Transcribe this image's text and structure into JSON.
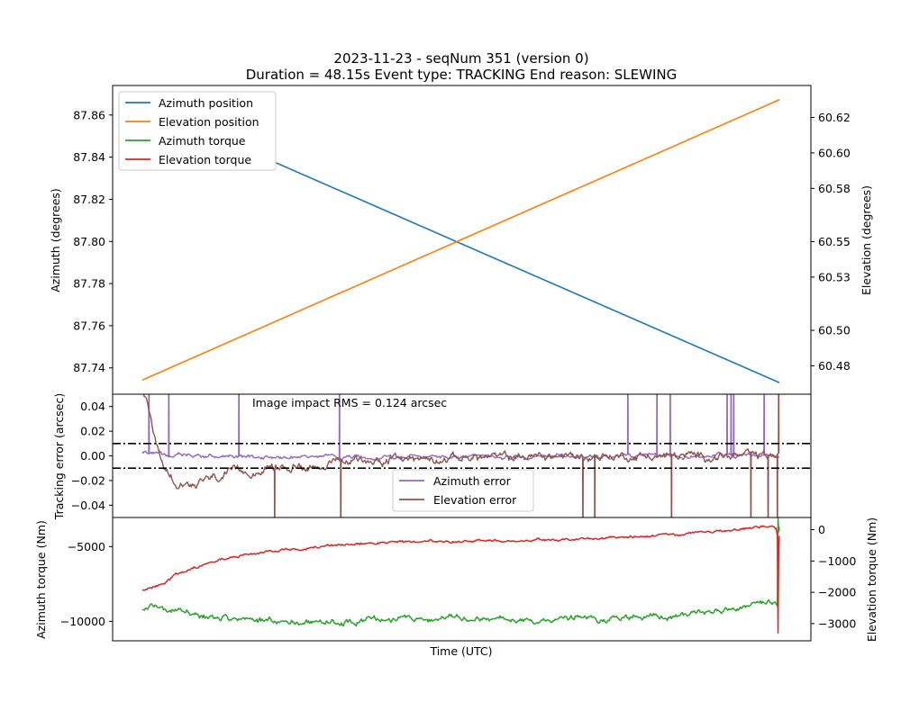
{
  "chart_data": [
    {
      "type": "line",
      "title": "2023-11-23 - seqNum 351 (version 0)",
      "subtitle": "Duration = 48.15s Event type: TRACKING End reason: SLEWING",
      "xlabel": "",
      "ylabel": "Azimuth (degrees)",
      "ylabel_right": "Elevation (degrees)",
      "ylim": [
        87.7275,
        87.874
      ],
      "ylim_right": [
        60.464,
        60.638
      ],
      "yticks": [
        "87.74",
        "87.76",
        "87.78",
        "87.80",
        "87.82",
        "87.84",
        "87.86"
      ],
      "yticks_right": [
        "60.48",
        "60.50",
        "60.53",
        "60.55",
        "60.58",
        "60.60",
        "60.62"
      ],
      "x_range": [
        0,
        48.15
      ],
      "grid": false,
      "legend": "top-left",
      "series": [
        {
          "name": "Azimuth position",
          "axis": "left",
          "color": "#1f77b4",
          "x": [
            0,
            48.15
          ],
          "values": [
            87.865,
            87.733
          ]
        },
        {
          "name": "Elevation position",
          "axis": "right",
          "color": "#ff7f0e",
          "x": [
            0,
            48.15
          ],
          "values": [
            60.472,
            60.63
          ]
        },
        {
          "name": "Azimuth torque",
          "color": "#2ca02c",
          "legend_only": true
        },
        {
          "name": "Elevation torque",
          "color": "#d62728",
          "legend_only": true
        }
      ]
    },
    {
      "type": "line",
      "ylabel": "Tracking error (arcsec)",
      "annotation": "Image impact RMS = 0.124 arcsec",
      "ylim": [
        -0.05,
        0.05
      ],
      "yticks": [
        "−0.04",
        "−0.02",
        "0.00",
        "0.02",
        "0.04"
      ],
      "x_range": [
        0,
        48.15
      ],
      "reference_lines": [
        0.01,
        -0.01
      ],
      "grid": false,
      "legend": "bottom-center",
      "series": [
        {
          "name": "Azimuth error",
          "color": "#9467bd",
          "baseline": [
            [
              0,
              0.003
            ],
            [
              3,
              0.0
            ],
            [
              8,
              -0.001
            ],
            [
              15,
              -0.001
            ],
            [
              30,
              -0.0005
            ],
            [
              48,
              0.0
            ]
          ],
          "noise": 0.0015,
          "spikes": [
            [
              0.5,
              0.05
            ],
            [
              2.0,
              0.05
            ],
            [
              7.3,
              0.05
            ],
            [
              14.9,
              0.05
            ],
            [
              36.7,
              0.05
            ],
            [
              38.9,
              0.05
            ],
            [
              39.9,
              0.05
            ],
            [
              44.2,
              0.05
            ],
            [
              44.5,
              0.05
            ],
            [
              44.7,
              0.05
            ],
            [
              47.0,
              0.05
            ]
          ]
        },
        {
          "name": "Elevation error",
          "color": "#8c564b",
          "baseline": [
            [
              0,
              0.05
            ],
            [
              0.3,
              0.045
            ],
            [
              1.0,
              0.01
            ],
            [
              1.6,
              -0.01
            ],
            [
              2.5,
              -0.02
            ],
            [
              4.0,
              -0.022
            ],
            [
              7.0,
              -0.014
            ],
            [
              10.0,
              -0.01
            ],
            [
              13.0,
              -0.008
            ],
            [
              16.0,
              -0.004
            ],
            [
              20.0,
              -0.002
            ],
            [
              30.0,
              -0.0005
            ],
            [
              48.0,
              0.0
            ]
          ],
          "noise": 0.003,
          "spikes": [
            [
              10.0,
              -0.05
            ],
            [
              15.0,
              -0.05
            ],
            [
              33.3,
              -0.05
            ],
            [
              34.2,
              -0.05
            ],
            [
              40.0,
              -0.05
            ],
            [
              46.0,
              -0.05
            ],
            [
              47.3,
              -0.05
            ],
            [
              48.0,
              -0.05
            ],
            [
              48.1,
              0.05
            ]
          ]
        }
      ]
    },
    {
      "type": "line",
      "xlabel": "Time (UTC)",
      "ylabel": "Azimuth torque (Nm)",
      "ylabel_right": "Elevation torque (Nm)",
      "ylim": [
        -11300,
        -3050
      ],
      "ylim_right": [
        -3550,
        390
      ],
      "yticks": [
        "−10000",
        "−5000"
      ],
      "yticks_right": [
        "−3000",
        "−2000",
        "−1000",
        "0"
      ],
      "x_range": [
        0,
        48.15
      ],
      "grid": false,
      "series": [
        {
          "name": "Azimuth torque",
          "axis": "left",
          "color": "#2ca02c",
          "baseline": [
            [
              0,
              -9100
            ],
            [
              1,
              -8900
            ],
            [
              3,
              -9400
            ],
            [
              6,
              -9800
            ],
            [
              10,
              -10000
            ],
            [
              15,
              -10050
            ],
            [
              20,
              -9800
            ],
            [
              30,
              -9900
            ],
            [
              40,
              -9700
            ],
            [
              45,
              -9100
            ],
            [
              47.8,
              -8900
            ],
            [
              48.0,
              -9000
            ]
          ],
          "noise": 180,
          "end_segment": [
            [
              48.0,
              -9000
            ],
            [
              48.05,
              -3100
            ],
            [
              48.1,
              -4000
            ],
            [
              48.15,
              -3700
            ]
          ]
        },
        {
          "name": "Elevation torque",
          "axis": "right",
          "color": "#d62728",
          "baseline": [
            [
              0,
              -1950
            ],
            [
              1,
              -1800
            ],
            [
              3,
              -1350
            ],
            [
              6,
              -920
            ],
            [
              10,
              -650
            ],
            [
              15,
              -490
            ],
            [
              20,
              -400
            ],
            [
              25,
              -360
            ],
            [
              30,
              -330
            ],
            [
              35,
              -280
            ],
            [
              40,
              -170
            ],
            [
              45,
              20
            ],
            [
              47.6,
              130
            ],
            [
              47.9,
              50
            ]
          ],
          "noise": 40,
          "end_segment": [
            [
              47.9,
              50
            ],
            [
              48.0,
              -200
            ],
            [
              48.05,
              -3300
            ],
            [
              48.1,
              -600
            ],
            [
              48.15,
              -200
            ]
          ]
        }
      ]
    }
  ]
}
